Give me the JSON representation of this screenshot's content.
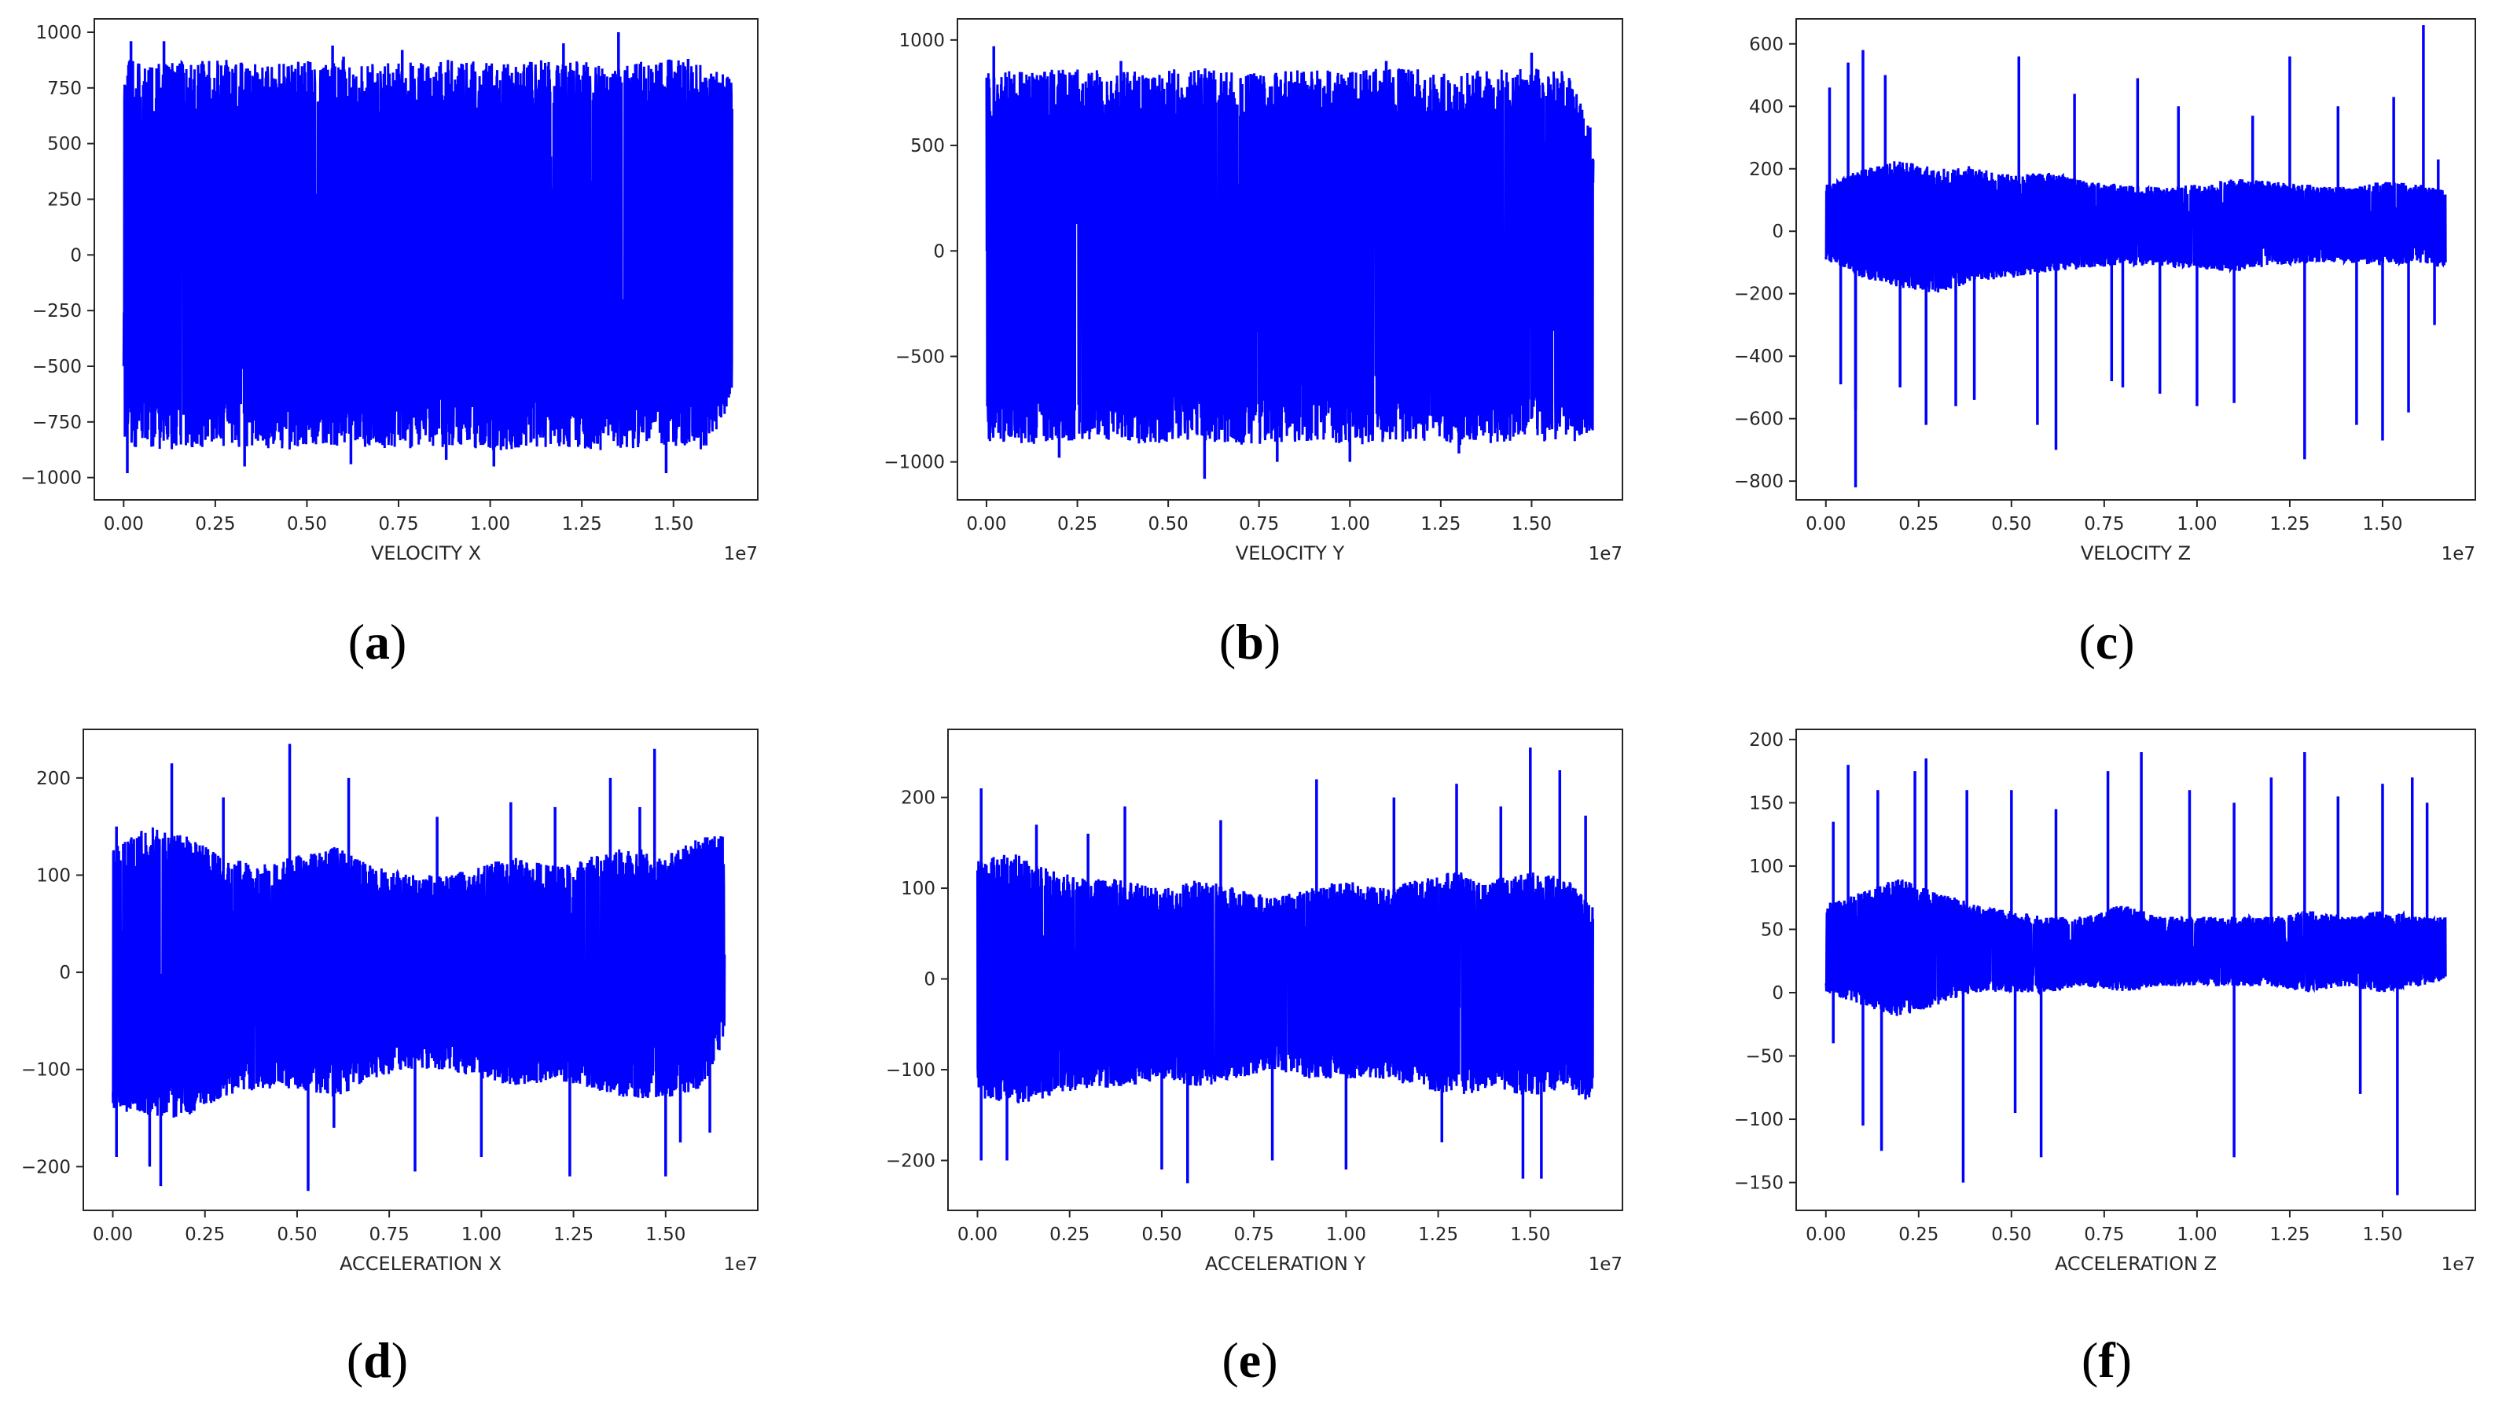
{
  "figure": {
    "line_color": "#0000ff",
    "axes_color": "#262626"
  },
  "chart_data": [
    {
      "type": "line",
      "caption": "a",
      "xlabel": "VELOCITY X",
      "x_offset_label": "1e7",
      "xlim": [
        -0.08,
        1.73
      ],
      "ylim": [
        -1100,
        1060
      ],
      "xticks": [
        0.0,
        0.25,
        0.5,
        0.75,
        1.0,
        1.25,
        1.5
      ],
      "xtick_labels": [
        "0.00",
        "0.25",
        "0.50",
        "0.75",
        "1.00",
        "1.25",
        "1.50"
      ],
      "yticks": [
        -1000,
        -750,
        -500,
        -250,
        0,
        250,
        500,
        750,
        1000
      ],
      "ytick_labels": [
        "−1000",
        "−750",
        "−500",
        "−250",
        "0",
        "250",
        "500",
        "750",
        "1000"
      ],
      "x_max": 1.66,
      "envelope": {
        "x": [
          0.0,
          0.1,
          0.2,
          0.3,
          0.4,
          0.5,
          0.6,
          0.7,
          0.8,
          0.9,
          1.0,
          1.1,
          1.2,
          1.3,
          1.4,
          1.5,
          1.6,
          1.66
        ],
        "upper": [
          880,
          860,
          870,
          880,
          860,
          870,
          880,
          860,
          870,
          880,
          860,
          870,
          880,
          860,
          870,
          880,
          860,
          800
        ],
        "lower": [
          -860,
          -880,
          -870,
          -860,
          -880,
          -870,
          -860,
          -880,
          -870,
          -860,
          -880,
          -870,
          -860,
          -880,
          -870,
          -860,
          -880,
          -640
        ]
      },
      "spikes": [
        [
          0.02,
          960
        ],
        [
          0.01,
          -980
        ],
        [
          0.11,
          960
        ],
        [
          0.57,
          940
        ],
        [
          0.6,
          890
        ],
        [
          0.62,
          -940
        ],
        [
          0.76,
          920
        ],
        [
          1.01,
          -950
        ],
        [
          1.35,
          1000
        ],
        [
          1.2,
          950
        ],
        [
          1.48,
          -980
        ],
        [
          0.33,
          -950
        ],
        [
          0.88,
          -920
        ],
        [
          1.54,
          880
        ]
      ]
    },
    {
      "type": "line",
      "caption": "b",
      "xlabel": "VELOCITY Y",
      "x_offset_label": "1e7",
      "xlim": [
        -0.08,
        1.75
      ],
      "ylim": [
        -1180,
        1100
      ],
      "xticks": [
        0.0,
        0.25,
        0.5,
        0.75,
        1.0,
        1.25,
        1.5
      ],
      "xtick_labels": [
        "0.00",
        "0.25",
        "0.50",
        "0.75",
        "1.00",
        "1.25",
        "1.50"
      ],
      "yticks": [
        -1000,
        -500,
        0,
        500,
        1000
      ],
      "ytick_labels": [
        "−1000",
        "−500",
        "0",
        "500",
        "1000"
      ],
      "x_max": 1.67,
      "envelope": {
        "x": [
          0.0,
          0.1,
          0.2,
          0.3,
          0.4,
          0.5,
          0.6,
          0.7,
          0.8,
          0.9,
          1.0,
          1.1,
          1.2,
          1.3,
          1.4,
          1.5,
          1.6,
          1.67
        ],
        "upper": [
          860,
          850,
          870,
          860,
          850,
          860,
          870,
          850,
          860,
          860,
          850,
          870,
          860,
          850,
          860,
          870,
          850,
          560
        ],
        "lower": [
          -900,
          -920,
          -910,
          -900,
          -920,
          -910,
          -900,
          -920,
          -910,
          -900,
          -920,
          -910,
          -900,
          -920,
          -910,
          -900,
          -920,
          -860
        ]
      },
      "spikes": [
        [
          0.02,
          970
        ],
        [
          0.6,
          -1080
        ],
        [
          0.8,
          -1000
        ],
        [
          1.0,
          -1000
        ],
        [
          1.5,
          940
        ],
        [
          0.37,
          900
        ],
        [
          1.1,
          900
        ],
        [
          0.2,
          -980
        ],
        [
          1.3,
          -960
        ]
      ]
    },
    {
      "type": "line",
      "caption": "c",
      "xlabel": "VELOCITY Z",
      "x_offset_label": "1e7",
      "xlim": [
        -0.08,
        1.75
      ],
      "ylim": [
        -860,
        680
      ],
      "xticks": [
        0.0,
        0.25,
        0.5,
        0.75,
        1.0,
        1.25,
        1.5
      ],
      "xtick_labels": [
        "0.00",
        "0.25",
        "0.50",
        "0.75",
        "1.00",
        "1.25",
        "1.50"
      ],
      "yticks": [
        -800,
        -600,
        -400,
        -200,
        0,
        200,
        400,
        600
      ],
      "ytick_labels": [
        "−800",
        "−600",
        "−400",
        "−200",
        "0",
        "200",
        "400",
        "600"
      ],
      "x_max": 1.67,
      "envelope": {
        "x": [
          0.0,
          0.1,
          0.2,
          0.3,
          0.4,
          0.5,
          0.6,
          0.7,
          0.8,
          0.9,
          1.0,
          1.1,
          1.2,
          1.3,
          1.4,
          1.5,
          1.6,
          1.67
        ],
        "upper": [
          150,
          200,
          230,
          200,
          210,
          180,
          190,
          160,
          150,
          140,
          150,
          170,
          160,
          150,
          140,
          160,
          150,
          130
        ],
        "lower": [
          -100,
          -150,
          -180,
          -200,
          -160,
          -150,
          -130,
          -120,
          -110,
          -110,
          -120,
          -130,
          -110,
          -100,
          -100,
          -110,
          -100,
          -120
        ]
      },
      "spikes": [
        [
          0.01,
          460
        ],
        [
          0.04,
          -490
        ],
        [
          0.06,
          540
        ],
        [
          0.08,
          -570
        ],
        [
          0.1,
          580
        ],
        [
          0.08,
          -820
        ],
        [
          0.16,
          500
        ],
        [
          0.2,
          -500
        ],
        [
          0.27,
          -620
        ],
        [
          0.35,
          -560
        ],
        [
          0.4,
          -540
        ],
        [
          0.52,
          560
        ],
        [
          0.57,
          -620
        ],
        [
          0.62,
          -700
        ],
        [
          0.67,
          440
        ],
        [
          0.77,
          -480
        ],
        [
          0.8,
          -500
        ],
        [
          0.84,
          490
        ],
        [
          0.9,
          -520
        ],
        [
          0.95,
          400
        ],
        [
          1.0,
          -560
        ],
        [
          1.1,
          -550
        ],
        [
          1.15,
          370
        ],
        [
          1.29,
          -730
        ],
        [
          1.25,
          560
        ],
        [
          1.38,
          400
        ],
        [
          1.43,
          -620
        ],
        [
          1.5,
          -670
        ],
        [
          1.53,
          430
        ],
        [
          1.57,
          -580
        ],
        [
          1.61,
          660
        ],
        [
          1.64,
          -300
        ],
        [
          1.65,
          230
        ]
      ]
    },
    {
      "type": "line",
      "caption": "d",
      "xlabel": "ACCELERATION X",
      "x_offset_label": "1e7",
      "xlim": [
        -0.08,
        1.75
      ],
      "ylim": [
        -245,
        250
      ],
      "xticks": [
        0.0,
        0.25,
        0.5,
        0.75,
        1.0,
        1.25,
        1.5
      ],
      "xtick_labels": [
        "0.00",
        "0.25",
        "0.50",
        "0.75",
        "1.00",
        "1.25",
        "1.50"
      ],
      "yticks": [
        -200,
        -100,
        0,
        100,
        200
      ],
      "ytick_labels": [
        "−200",
        "−100",
        "0",
        "100",
        "200"
      ],
      "x_max": 1.66,
      "envelope": {
        "x": [
          0.0,
          0.1,
          0.2,
          0.3,
          0.4,
          0.5,
          0.6,
          0.7,
          0.8,
          0.9,
          1.0,
          1.1,
          1.2,
          1.3,
          1.4,
          1.5,
          1.6,
          1.66
        ],
        "upper": [
          130,
          150,
          140,
          120,
          110,
          120,
          130,
          110,
          100,
          100,
          110,
          120,
          110,
          120,
          130,
          120,
          140,
          140
        ],
        "lower": [
          -140,
          -150,
          -150,
          -130,
          -120,
          -120,
          -130,
          -110,
          -100,
          -100,
          -110,
          -120,
          -110,
          -120,
          -130,
          -130,
          -120,
          -70
        ]
      },
      "spikes": [
        [
          0.01,
          150
        ],
        [
          0.01,
          -190
        ],
        [
          0.1,
          -200
        ],
        [
          0.13,
          -220
        ],
        [
          0.16,
          215
        ],
        [
          0.3,
          180
        ],
        [
          0.48,
          235
        ],
        [
          0.53,
          -225
        ],
        [
          0.6,
          -160
        ],
        [
          0.64,
          200
        ],
        [
          0.82,
          -205
        ],
        [
          0.88,
          160
        ],
        [
          1.0,
          -190
        ],
        [
          1.08,
          175
        ],
        [
          1.24,
          -210
        ],
        [
          1.2,
          170
        ],
        [
          1.35,
          200
        ],
        [
          1.43,
          170
        ],
        [
          1.47,
          230
        ],
        [
          1.5,
          -210
        ],
        [
          1.54,
          -175
        ],
        [
          1.62,
          -165
        ],
        [
          1.65,
          140
        ]
      ]
    },
    {
      "type": "line",
      "caption": "e",
      "xlabel": "ACCELERATION Y",
      "x_offset_label": "1e7",
      "xlim": [
        -0.08,
        1.75
      ],
      "ylim": [
        -255,
        275
      ],
      "xticks": [
        0.0,
        0.25,
        0.5,
        0.75,
        1.0,
        1.25,
        1.5
      ],
      "xtick_labels": [
        "0.00",
        "0.25",
        "0.50",
        "0.75",
        "1.00",
        "1.25",
        "1.50"
      ],
      "yticks": [
        -200,
        -100,
        0,
        100,
        200
      ],
      "ytick_labels": [
        "−200",
        "−100",
        "0",
        "100",
        "200"
      ],
      "x_max": 1.67,
      "envelope": {
        "x": [
          0.0,
          0.1,
          0.2,
          0.3,
          0.4,
          0.5,
          0.6,
          0.7,
          0.8,
          0.9,
          1.0,
          1.1,
          1.2,
          1.3,
          1.4,
          1.5,
          1.6,
          1.67
        ],
        "upper": [
          130,
          140,
          120,
          110,
          110,
          100,
          110,
          100,
          90,
          100,
          110,
          100,
          110,
          120,
          110,
          120,
          110,
          80
        ],
        "lower": [
          -130,
          -140,
          -130,
          -120,
          -120,
          -110,
          -120,
          -110,
          -100,
          -110,
          -110,
          -110,
          -120,
          -130,
          -120,
          -130,
          -120,
          -140
        ]
      },
      "spikes": [
        [
          0.01,
          210
        ],
        [
          0.01,
          -200
        ],
        [
          0.08,
          -200
        ],
        [
          0.16,
          170
        ],
        [
          0.3,
          160
        ],
        [
          0.4,
          190
        ],
        [
          0.5,
          -210
        ],
        [
          0.57,
          -225
        ],
        [
          0.66,
          175
        ],
        [
          0.8,
          -200
        ],
        [
          0.92,
          220
        ],
        [
          1.0,
          -210
        ],
        [
          1.13,
          200
        ],
        [
          1.26,
          -180
        ],
        [
          1.3,
          215
        ],
        [
          1.42,
          190
        ],
        [
          1.5,
          255
        ],
        [
          1.48,
          -220
        ],
        [
          1.53,
          -220
        ],
        [
          1.58,
          230
        ],
        [
          1.65,
          180
        ]
      ]
    },
    {
      "type": "line",
      "caption": "f",
      "xlabel": "ACCELERATION Z",
      "x_offset_label": "1e7",
      "xlim": [
        -0.08,
        1.75
      ],
      "ylim": [
        -172,
        208
      ],
      "xticks": [
        0.0,
        0.25,
        0.5,
        0.75,
        1.0,
        1.25,
        1.5
      ],
      "xtick_labels": [
        "0.00",
        "0.25",
        "0.50",
        "0.75",
        "1.00",
        "1.25",
        "1.50"
      ],
      "yticks": [
        -150,
        -100,
        -50,
        0,
        50,
        100,
        150,
        200
      ],
      "ytick_labels": [
        "−150",
        "−100",
        "−50",
        "0",
        "50",
        "100",
        "150",
        "200"
      ],
      "x_max": 1.67,
      "envelope": {
        "x": [
          0.0,
          0.1,
          0.2,
          0.3,
          0.4,
          0.5,
          0.6,
          0.7,
          0.8,
          0.9,
          1.0,
          1.1,
          1.2,
          1.3,
          1.4,
          1.5,
          1.6,
          1.67
        ],
        "upper": [
          70,
          80,
          90,
          80,
          70,
          65,
          60,
          60,
          70,
          60,
          60,
          60,
          60,
          65,
          60,
          65,
          60,
          60
        ],
        "lower": [
          0,
          -10,
          -20,
          -10,
          0,
          0,
          0,
          5,
          0,
          5,
          5,
          5,
          5,
          0,
          5,
          0,
          5,
          10
        ]
      },
      "spikes": [
        [
          0.02,
          135
        ],
        [
          0.02,
          -40
        ],
        [
          0.06,
          180
        ],
        [
          0.1,
          -105
        ],
        [
          0.14,
          160
        ],
        [
          0.15,
          -125
        ],
        [
          0.24,
          175
        ],
        [
          0.27,
          185
        ],
        [
          0.37,
          -150
        ],
        [
          0.38,
          160
        ],
        [
          0.5,
          160
        ],
        [
          0.51,
          -95
        ],
        [
          0.58,
          -130
        ],
        [
          0.62,
          145
        ],
        [
          0.76,
          175
        ],
        [
          0.85,
          190
        ],
        [
          0.9,
          60
        ],
        [
          0.98,
          160
        ],
        [
          1.1,
          150
        ],
        [
          1.1,
          -130
        ],
        [
          1.2,
          170
        ],
        [
          1.29,
          190
        ],
        [
          1.38,
          155
        ],
        [
          1.44,
          -80
        ],
        [
          1.5,
          165
        ],
        [
          1.54,
          -160
        ],
        [
          1.58,
          170
        ],
        [
          1.62,
          150
        ]
      ]
    }
  ]
}
